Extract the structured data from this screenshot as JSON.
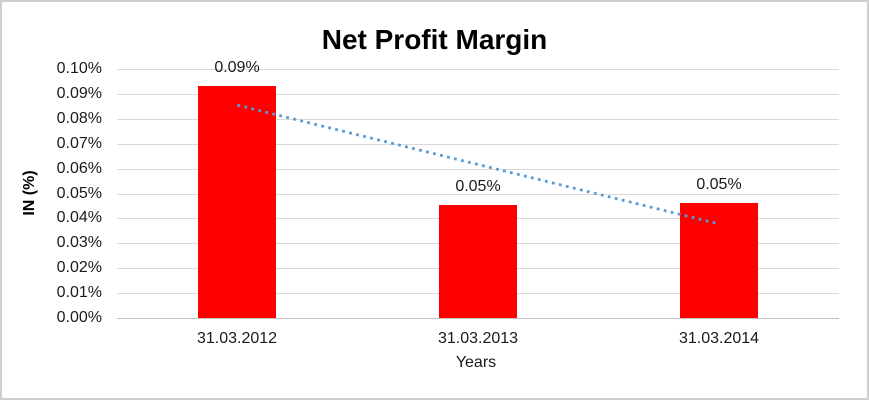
{
  "window": {
    "background": "#ffffff",
    "border_color": "#cfcfd2"
  },
  "chart_data": {
    "type": "bar",
    "title": "Net Profit Margin",
    "xlabel": "Years",
    "ylabel": "IN (%)",
    "categories": [
      "31.03.2012",
      "31.03.2013",
      "31.03.2014"
    ],
    "series": [
      {
        "name": "Net Profit Margin",
        "values_percent": [
          0.0932,
          0.0455,
          0.0462
        ],
        "data_labels": [
          "0.09%",
          "0.05%",
          "0.05%"
        ],
        "color": "#ff0000"
      }
    ],
    "trendline": {
      "type": "linear",
      "style": "dotted",
      "color": "#5b9bd5",
      "start_percent": 0.0855,
      "end_percent": 0.0378
    },
    "y_axis": {
      "min_percent": 0.0,
      "max_percent": 0.1,
      "step_percent": 0.01,
      "tick_labels": [
        "0.00%",
        "0.01%",
        "0.02%",
        "0.03%",
        "0.04%",
        "0.05%",
        "0.06%",
        "0.07%",
        "0.08%",
        "0.09%",
        "0.10%"
      ]
    },
    "grid": true,
    "legend_position": "none",
    "gridline_color": "#d9d9d9",
    "axis_line_color": "#c0c0c0"
  }
}
